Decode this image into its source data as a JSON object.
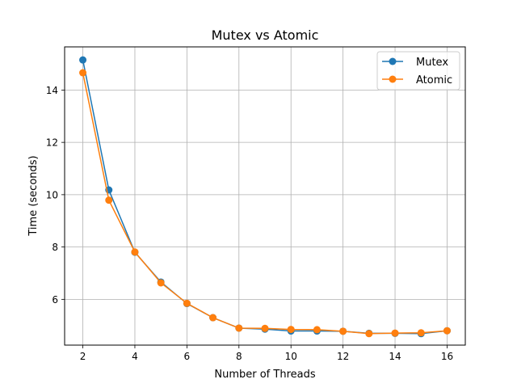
{
  "chart_data": {
    "type": "line",
    "title": "Mutex vs Atomic",
    "xlabel": "Number of Threads",
    "ylabel": "Time (seconds)",
    "xlim": [
      1.3,
      16.7
    ],
    "ylim": [
      4.25,
      15.65
    ],
    "x_ticks": [
      2,
      4,
      6,
      8,
      10,
      12,
      14,
      16
    ],
    "y_ticks": [
      6,
      8,
      10,
      12,
      14
    ],
    "grid": true,
    "legend_position": "top-right",
    "x": [
      2,
      3,
      4,
      5,
      6,
      7,
      8,
      9,
      10,
      11,
      12,
      13,
      14,
      15,
      16
    ],
    "series": [
      {
        "name": "Mutex",
        "color": "#1f77b4",
        "marker": "circle",
        "values": [
          15.15,
          10.18,
          7.8,
          6.66,
          5.84,
          5.3,
          4.9,
          4.86,
          4.79,
          4.79,
          4.78,
          4.7,
          4.7,
          4.69,
          4.8
        ]
      },
      {
        "name": "Atomic",
        "color": "#ff7f0e",
        "marker": "circle",
        "values": [
          14.66,
          9.79,
          7.81,
          6.63,
          5.85,
          5.3,
          4.9,
          4.89,
          4.85,
          4.84,
          4.78,
          4.69,
          4.71,
          4.72,
          4.8
        ]
      }
    ]
  }
}
